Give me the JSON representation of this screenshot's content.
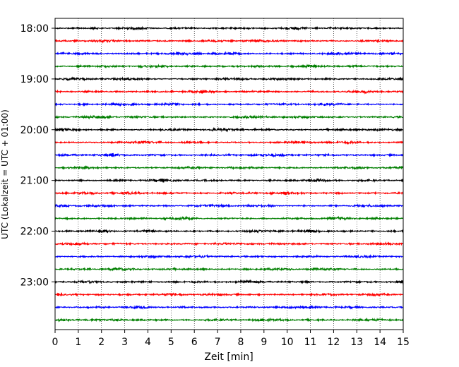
{
  "chart_data": {
    "type": "line",
    "title": "",
    "xlabel": "Zeit  [min]",
    "ylabel": "UTC (Lokalzeit = UTC + 01:00)",
    "xlim": [
      0,
      15
    ],
    "x_ticks": [
      0,
      1,
      2,
      3,
      4,
      5,
      6,
      7,
      8,
      9,
      10,
      11,
      12,
      13,
      14,
      15
    ],
    "y_tick_labels": [
      "18:00",
      "19:00",
      "20:00",
      "21:00",
      "22:00",
      "23:00"
    ],
    "grid": "vertical dotted at each minute",
    "trace_start_times": [
      "18:00",
      "18:15",
      "18:30",
      "18:45",
      "19:00",
      "19:15",
      "19:30",
      "19:45",
      "20:00",
      "20:15",
      "20:30",
      "20:45",
      "21:00",
      "21:15",
      "21:30",
      "21:45",
      "22:00",
      "22:15",
      "22:30",
      "22:45",
      "23:00",
      "23:15",
      "23:30",
      "23:45"
    ],
    "trace_colors": [
      "#000000",
      "#ff0000",
      "#0000ff",
      "#007f00"
    ]
  }
}
